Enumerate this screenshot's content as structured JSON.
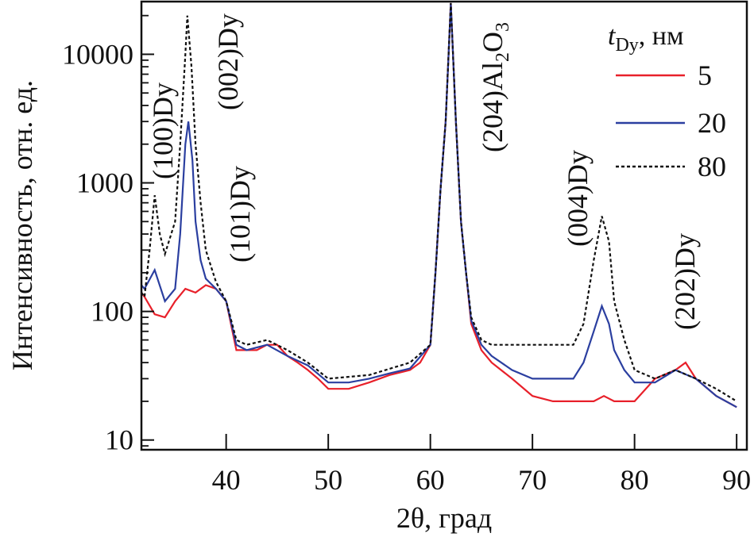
{
  "chart_data": {
    "type": "line",
    "title": "",
    "xlabel": "2θ, град",
    "ylabel": "Интенсивность, отн. ед.",
    "xlim": [
      31.7,
      91
    ],
    "ylim": [
      8.4,
      25700
    ],
    "yscale": "log",
    "xticks": [
      40,
      50,
      60,
      70,
      80,
      90
    ],
    "xtick_labels": [
      "40",
      "50",
      "60",
      "70",
      "80",
      "90"
    ],
    "yticks": [
      10,
      100,
      1000,
      10000
    ],
    "ytick_labels": [
      "10",
      "100",
      "1000",
      "10000"
    ],
    "grid": false,
    "legend": {
      "title_main": "t",
      "title_sub": "Dy",
      "title_unit": ", нм",
      "placement": "top-right"
    },
    "annotations": [
      {
        "text": "(100)Dy",
        "x": 33
      },
      {
        "text": "(002)Dy",
        "x": 36.2
      },
      {
        "text": "(101)Dy",
        "x": 38.5
      },
      {
        "text_main": "(204)Al",
        "sub1": "2",
        "mid": "O",
        "sub2": "3",
        "x": 62
      },
      {
        "text": "(004)Dy",
        "x": 76.8
      },
      {
        "text": "(202)Dy",
        "x": 84
      }
    ],
    "series": [
      {
        "name": "5",
        "color": "#e8202a",
        "style": "solid",
        "x": [
          31.7,
          32,
          33,
          34,
          35,
          36,
          37,
          38,
          39,
          40,
          41,
          42,
          43,
          44,
          45,
          46,
          47,
          48,
          49,
          50,
          52,
          54,
          56,
          58,
          59,
          60,
          60.5,
          61,
          61.5,
          62,
          62.5,
          63,
          63.5,
          64,
          65,
          66,
          68,
          70,
          72,
          74,
          76,
          77,
          78,
          80,
          82,
          84,
          85,
          86,
          88,
          90
        ],
        "y": [
          140,
          130,
          95,
          90,
          120,
          150,
          140,
          160,
          150,
          120,
          50,
          50,
          50,
          55,
          55,
          45,
          40,
          35,
          30,
          25,
          25,
          28,
          32,
          35,
          40,
          55,
          200,
          900,
          3000,
          25000,
          3000,
          500,
          200,
          80,
          50,
          40,
          30,
          22,
          20,
          20,
          20,
          22,
          20,
          20,
          30,
          35,
          40,
          30,
          22,
          18
        ]
      },
      {
        "name": "20",
        "color": "#2b3fa0",
        "style": "solid",
        "x": [
          31.7,
          32,
          33,
          34,
          35,
          35.5,
          36,
          36.3,
          36.7,
          37,
          37.5,
          38,
          39,
          40,
          41,
          42,
          44,
          46,
          48,
          50,
          52,
          54,
          56,
          58,
          60,
          60.5,
          61,
          61.5,
          62,
          62.5,
          63,
          63.5,
          64,
          65,
          66,
          68,
          70,
          72,
          74,
          75,
          76,
          76.8,
          77.5,
          78,
          79,
          80,
          82,
          84,
          86,
          88,
          90
        ],
        "y": [
          160,
          150,
          210,
          120,
          150,
          400,
          2000,
          3000,
          1500,
          500,
          250,
          180,
          150,
          120,
          55,
          50,
          55,
          45,
          38,
          28,
          28,
          30,
          33,
          36,
          55,
          200,
          900,
          3000,
          25000,
          3000,
          500,
          200,
          85,
          55,
          45,
          35,
          30,
          30,
          30,
          40,
          70,
          110,
          80,
          50,
          35,
          28,
          28,
          35,
          30,
          22,
          18
        ]
      },
      {
        "name": "80",
        "color": "#111111",
        "style": "dashed",
        "x": [
          31.7,
          32,
          32.5,
          33,
          33.5,
          34,
          35,
          35.5,
          36,
          36.2,
          36.6,
          37,
          37.5,
          38,
          39,
          40,
          41,
          42,
          44,
          46,
          48,
          50,
          54,
          58,
          60,
          60.5,
          61,
          61.5,
          62,
          62.5,
          63,
          63.5,
          64,
          65,
          66,
          68,
          70,
          72,
          74,
          75,
          76,
          76.8,
          77.5,
          78,
          79,
          80,
          82,
          84,
          86,
          88,
          90
        ],
        "y": [
          140,
          130,
          300,
          800,
          400,
          280,
          500,
          2000,
          10000,
          20000,
          8000,
          2000,
          700,
          300,
          170,
          120,
          60,
          55,
          60,
          50,
          40,
          30,
          32,
          40,
          55,
          200,
          900,
          3000,
          25000,
          3000,
          500,
          200,
          90,
          60,
          55,
          55,
          55,
          55,
          55,
          80,
          250,
          550,
          350,
          120,
          60,
          35,
          30,
          35,
          30,
          25,
          20
        ]
      }
    ]
  }
}
